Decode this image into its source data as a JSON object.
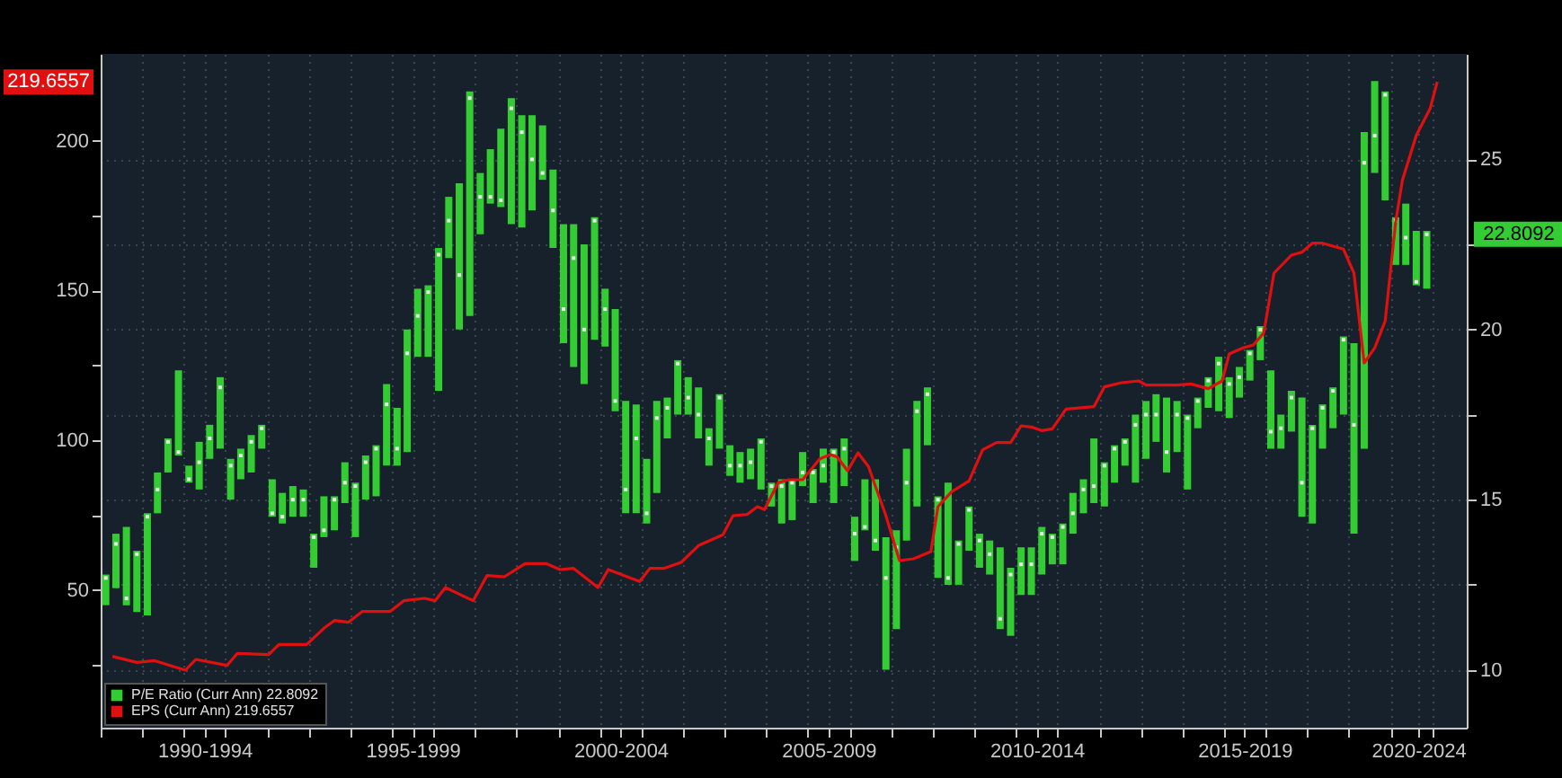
{
  "chart_data": {
    "type": "bar",
    "legend": "bottom left",
    "grid": true,
    "x": [
      "1990-02-15",
      "1990-05-15",
      "1990-08-15",
      "1990-11-15",
      "1991-02-15",
      "1991-05-15",
      "1991-08-15",
      "1991-11-15",
      "1992-02-15",
      "1992-05-15",
      "1992-08-15",
      "1992-11-15",
      "1993-02-15",
      "1993-05-15",
      "1993-08-15",
      "1993-11-15",
      "1994-02-15",
      "1994-05-15",
      "1994-08-15",
      "1994-11-15",
      "1995-02-15",
      "1995-05-15",
      "1995-08-15",
      "1995-11-15",
      "1996-02-15",
      "1996-05-15",
      "1996-08-15",
      "1996-11-15",
      "1997-02-15",
      "1997-05-15",
      "1997-08-15",
      "1997-11-15",
      "1998-02-15",
      "1998-05-15",
      "1998-08-15",
      "1998-11-15",
      "1999-02-15",
      "1999-05-15",
      "1999-08-15",
      "1999-11-15",
      "2000-02-15",
      "2000-05-15",
      "2000-08-15",
      "2000-11-15",
      "2001-02-15",
      "2001-05-15",
      "2001-08-15",
      "2001-11-15",
      "2002-02-15",
      "2002-05-15",
      "2002-08-15",
      "2002-11-15",
      "2003-02-15",
      "2003-05-15",
      "2003-08-15",
      "2003-11-15",
      "2004-02-15",
      "2004-05-15",
      "2004-08-15",
      "2004-11-15",
      "2005-02-15",
      "2005-05-15",
      "2005-08-15",
      "2005-11-15",
      "2006-02-15",
      "2006-05-15",
      "2006-08-15",
      "2006-11-15",
      "2007-02-15",
      "2007-05-15",
      "2007-08-15",
      "2007-11-15",
      "2008-02-15",
      "2008-05-15",
      "2008-08-15",
      "2008-11-15",
      "2009-02-15",
      "2009-05-15",
      "2009-08-15",
      "2009-11-15",
      "2010-02-15",
      "2010-05-15",
      "2010-08-15",
      "2010-11-15",
      "2011-02-15",
      "2011-05-15",
      "2011-08-15",
      "2011-11-15",
      "2012-02-15",
      "2012-05-15",
      "2012-08-15",
      "2012-11-15",
      "2013-02-15",
      "2013-05-15",
      "2013-08-15",
      "2013-11-15",
      "2014-02-15",
      "2014-05-15",
      "2014-08-15",
      "2014-11-15",
      "2015-02-15",
      "2015-05-15",
      "2015-08-15",
      "2015-11-15",
      "2016-02-15",
      "2016-05-15",
      "2016-08-15",
      "2016-11-15",
      "2017-02-15",
      "2017-05-15",
      "2017-08-15",
      "2017-11-15",
      "2018-02-15",
      "2018-05-15",
      "2018-08-15",
      "2018-11-15",
      "2019-02-15",
      "2019-05-15",
      "2019-08-15",
      "2019-11-15",
      "2020-02-15",
      "2020-05-15",
      "2020-08-15",
      "2020-11-15",
      "2021-02-15",
      "2021-05-15",
      "2021-08-15",
      "2021-11-15"
    ],
    "xlim": [
      "1990-01-01",
      "2022-11-01"
    ],
    "xticks": [
      {
        "value": "1990-01-01",
        "label": null
      },
      {
        "value": "1991-01-01",
        "label": null
      },
      {
        "value": "1992-01-01",
        "label": null
      },
      {
        "value": "1992-07-01",
        "label": "1990-1994"
      },
      {
        "value": "1993-01-01",
        "label": null
      },
      {
        "value": "1994-01-01",
        "label": null
      },
      {
        "value": "1995-01-01",
        "label": null
      },
      {
        "value": "1996-01-01",
        "label": null
      },
      {
        "value": "1997-01-01",
        "label": null
      },
      {
        "value": "1997-07-01",
        "label": "1995-1999"
      },
      {
        "value": "1998-01-01",
        "label": null
      },
      {
        "value": "1999-01-01",
        "label": null
      },
      {
        "value": "2000-01-01",
        "label": null
      },
      {
        "value": "2001-01-01",
        "label": null
      },
      {
        "value": "2002-01-01",
        "label": null
      },
      {
        "value": "2002-07-01",
        "label": "2000-2004"
      },
      {
        "value": "2003-01-01",
        "label": null
      },
      {
        "value": "2004-01-01",
        "label": null
      },
      {
        "value": "2005-01-01",
        "label": null
      },
      {
        "value": "2006-01-01",
        "label": null
      },
      {
        "value": "2007-01-01",
        "label": null
      },
      {
        "value": "2007-07-01",
        "label": "2005-2009"
      },
      {
        "value": "2008-01-01",
        "label": null
      },
      {
        "value": "2009-01-01",
        "label": null
      },
      {
        "value": "2010-01-01",
        "label": null
      },
      {
        "value": "2011-01-01",
        "label": null
      },
      {
        "value": "2012-01-01",
        "label": null
      },
      {
        "value": "2012-07-01",
        "label": "2010-2014"
      },
      {
        "value": "2013-01-01",
        "label": null
      },
      {
        "value": "2014-01-01",
        "label": null
      },
      {
        "value": "2015-01-01",
        "label": null
      },
      {
        "value": "2016-01-01",
        "label": null
      },
      {
        "value": "2017-01-01",
        "label": null
      },
      {
        "value": "2017-07-01",
        "label": "2015-2019"
      },
      {
        "value": "2018-01-01",
        "label": null
      },
      {
        "value": "2019-01-01",
        "label": null
      },
      {
        "value": "2020-01-01",
        "label": null
      },
      {
        "value": "2021-01-01",
        "label": null
      },
      {
        "value": "2021-09-01",
        "label": "2020-2024"
      },
      {
        "value": "2022-01-01",
        "label": null
      }
    ],
    "ylim": [
      4,
      229
    ],
    "yticks": [
      {
        "value": 25,
        "label": null
      },
      50,
      {
        "value": 75,
        "label": null
      },
      100,
      {
        "value": 125,
        "label": null
      },
      150,
      {
        "value": 175,
        "label": null
      },
      200
    ],
    "y2lim": [
      8.3,
      28.1
    ],
    "y2ticks": [
      10,
      {
        "value": 12.5,
        "label": null
      },
      15,
      {
        "value": 17.5,
        "label": null
      },
      20,
      {
        "value": 22.5,
        "label": null
      },
      25
    ],
    "series": [
      {
        "name": "P/E Ratio (Curr Ann) 22.8092",
        "axis": "y2",
        "color": "#33cc33",
        "base": [
          11.9,
          12.4,
          11.9,
          11.7,
          11.6,
          14.6,
          15.8,
          16.3,
          15.5,
          15.3,
          16.2,
          16.5,
          15.0,
          15.6,
          15.8,
          16.5,
          14.5,
          14.3,
          14.5,
          14.5,
          13.0,
          13.9,
          14.1,
          14.9,
          13.9,
          15.0,
          15.1,
          16.0,
          16.0,
          16.4,
          19.2,
          19.2,
          18.2,
          22.1,
          20.0,
          20.4,
          22.8,
          23.7,
          23.6,
          23.1,
          23.0,
          23.5,
          24.4,
          22.4,
          19.6,
          18.9,
          18.4,
          19.7,
          19.5,
          17.6,
          14.6,
          14.6,
          14.3,
          15.2,
          16.8,
          17.5,
          17.5,
          16.8,
          16.0,
          16.5,
          15.7,
          15.5,
          15.6,
          15.3,
          14.8,
          14.3,
          14.4,
          15.4,
          14.9,
          15.5,
          14.9,
          15.4,
          13.2,
          14.1,
          13.5,
          10.0,
          11.2,
          13.8,
          14.8,
          16.6,
          12.7,
          12.5,
          12.5,
          13.5,
          13.0,
          12.8,
          11.2,
          11.0,
          12.2,
          12.2,
          12.8,
          13.1,
          13.1,
          14.0,
          14.6,
          14.9,
          14.8,
          15.5,
          16.0,
          15.5,
          16.2,
          16.7,
          15.8,
          16.4,
          15.3,
          17.1,
          17.7,
          17.6,
          17.4,
          18.0,
          18.5,
          19.1,
          16.5,
          16.5,
          17.0,
          14.5,
          14.3,
          16.5,
          17.1,
          17.5,
          14.0,
          16.5,
          24.6,
          23.8,
          21.9,
          21.9,
          21.3,
          21.2
        ],
        "values": [
          0.9,
          1.6,
          2.3,
          1.8,
          3.0,
          1.2,
          1.0,
          2.5,
          0.5,
          1.4,
          1.0,
          2.1,
          1.2,
          0.9,
          1.1,
          0.7,
          1.1,
          0.9,
          0.9,
          0.8,
          1.0,
          1.2,
          1.0,
          1.2,
          1.6,
          1.3,
          1.5,
          2.4,
          1.7,
          3.6,
          2.0,
          2.1,
          4.2,
          1.8,
          4.3,
          6.6,
          1.8,
          1.6,
          2.3,
          3.7,
          3.3,
          2.8,
          1.6,
          2.3,
          3.5,
          4.2,
          4.1,
          3.6,
          1.7,
          3.0,
          3.3,
          3.2,
          1.9,
          2.7,
          1.2,
          1.6,
          1.1,
          1.5,
          1.1,
          1.6,
          0.9,
          0.9,
          0.9,
          1.5,
          0.7,
          1.3,
          1.2,
          1.0,
          1.0,
          1.0,
          1.6,
          1.4,
          1.3,
          1.5,
          2.1,
          3.9,
          2.9,
          2.7,
          3.1,
          1.7,
          2.4,
          3.0,
          1.3,
          1.3,
          1.0,
          1.0,
          2.4,
          2.0,
          1.4,
          1.4,
          1.4,
          0.9,
          1.2,
          1.2,
          1.0,
          1.9,
          1.3,
          1.1,
          0.8,
          2.0,
          1.7,
          1.4,
          2.2,
          1.5,
          2.2,
          0.9,
          0.9,
          1.6,
          1.2,
          0.9,
          0.9,
          1.0,
          2.3,
          1.0,
          1.2,
          3.5,
          2.9,
          1.3,
          1.2,
          2.3,
          5.6,
          9.3,
          2.7,
          3.2,
          1.4,
          1.8,
          1.6,
          1.7
        ]
      },
      {
        "type": "scatter",
        "axis": "y2",
        "color": "#e8e8e8",
        "marker": "square",
        "values": [
          12.7,
          13.7,
          12.1,
          13.4,
          14.5,
          15.3,
          16.7,
          16.4,
          15.6,
          16.1,
          16.8,
          18.3,
          16.0,
          16.3,
          16.7,
          17.1,
          14.6,
          14.5,
          15.0,
          15.0,
          13.9,
          14.1,
          15.0,
          15.5,
          15.4,
          16.1,
          16.5,
          17.8,
          16.5,
          19.3,
          20.4,
          21.1,
          22.2,
          23.2,
          21.6,
          26.8,
          23.9,
          23.9,
          23.8,
          26.5,
          25.8,
          25.0,
          24.6,
          23.5,
          20.6,
          22.1,
          20.0,
          23.2,
          20.6,
          17.9,
          15.3,
          16.8,
          14.6,
          17.4,
          17.7,
          19.0,
          18.0,
          17.5,
          16.8,
          18.0,
          16.0,
          16.0,
          16.1,
          16.7,
          15.4,
          15.4,
          15.5,
          15.8,
          15.8,
          16.0,
          16.4,
          16.5,
          14.0,
          14.2,
          13.8,
          12.7,
          13.6,
          15.5,
          17.6,
          18.1,
          15.0,
          12.7,
          13.7,
          14.7,
          13.8,
          13.4,
          11.5,
          12.8,
          13.1,
          13.1,
          14.0,
          13.9,
          14.2,
          14.6,
          15.3,
          15.4,
          16.0,
          16.5,
          16.7,
          17.2,
          17.5,
          17.5,
          16.4,
          17.5,
          17.4,
          17.9,
          18.5,
          19.0,
          18.4,
          18.6,
          19.3,
          20.0,
          17.0,
          17.1,
          18.0,
          15.5,
          17.1,
          17.7,
          18.2,
          19.7,
          17.2,
          24.9,
          25.7,
          26.9,
          23.2,
          22.7,
          21.4,
          22.8
        ]
      },
      {
        "name": "EPS (Curr Ann) 219.6557",
        "type": "line",
        "axis": "y",
        "color": "#e01010",
        "x": [
          "1990-04-15",
          "1990-11-15",
          "1991-04-15",
          "1992-01-15",
          "1992-04-15",
          "1993-01-15",
          "1993-04-15",
          "1994-01-15",
          "1994-04-15",
          "1994-12-15",
          "1995-05-15",
          "1995-08-15",
          "1995-12-15",
          "1996-04-15",
          "1996-12-15",
          "1997-04-15",
          "1997-10-15",
          "1998-01-15",
          "1998-04-15",
          "1998-12-15",
          "1999-04-15",
          "1999-09-15",
          "2000-03-15",
          "2000-09-15",
          "2001-01-15",
          "2001-05-15",
          "2001-12-15",
          "2002-03-15",
          "2002-12-15",
          "2003-03-15",
          "2003-07-15",
          "2003-12-15",
          "2004-05-15",
          "2004-12-15",
          "2005-03-15",
          "2005-07-15",
          "2005-10-15",
          "2005-12-15",
          "2006-04-15",
          "2006-07-15",
          "2006-11-15",
          "2007-04-15",
          "2007-07-15",
          "2007-09-15",
          "2007-12-15",
          "2008-03-15",
          "2008-06-15",
          "2008-11-15",
          "2009-03-15",
          "2009-07-15",
          "2009-12-15",
          "2010-02-15",
          "2010-06-15",
          "2010-11-15",
          "2011-03-15",
          "2011-07-15",
          "2011-11-15",
          "2012-02-15",
          "2012-05-15",
          "2012-08-15",
          "2012-11-15",
          "2013-03-15",
          "2013-11-15",
          "2014-02-15",
          "2014-07-15",
          "2014-12-15",
          "2015-02-15",
          "2015-11-15",
          "2016-03-15",
          "2016-08-15",
          "2016-12-15",
          "2017-02-15",
          "2017-06-15",
          "2017-09-15",
          "2017-12-15",
          "2018-03-15",
          "2018-08-15",
          "2018-11-15",
          "2019-02-15",
          "2019-05-15",
          "2019-11-15",
          "2020-02-15",
          "2020-05-15",
          "2020-08-15",
          "2020-11-15",
          "2021-02-15",
          "2021-04-15",
          "2021-08-15",
          "2021-12-15",
          "2022-02-15"
        ],
        "values": [
          27.8,
          25.8,
          26.4,
          23.2,
          26.8,
          24.8,
          28.8,
          28.4,
          31.8,
          31.8,
          37.2,
          39.8,
          39.2,
          42.8,
          42.8,
          46.4,
          47.2,
          46.4,
          50.8,
          46.4,
          54.8,
          54.4,
          58.8,
          58.8,
          56.8,
          57.2,
          50.8,
          56.8,
          52.8,
          57.2,
          57.2,
          59.2,
          64.8,
          68.4,
          74.8,
          75.2,
          77.8,
          76.8,
          85.8,
          86.8,
          86.8,
          93.8,
          95.2,
          94.4,
          89.8,
          95.8,
          91.2,
          74.8,
          59.8,
          60.4,
          62.8,
          77.8,
          82.8,
          86.4,
          96.8,
          99.2,
          99.2,
          104.8,
          104.4,
          103.2,
          103.8,
          110.4,
          111.2,
          117.8,
          119.2,
          119.8,
          118.4,
          118.4,
          118.8,
          117.2,
          119.8,
          128.8,
          130.8,
          131.8,
          135.8,
          155.8,
          161.8,
          162.8,
          165.8,
          165.8,
          163.8,
          155.8,
          125.8,
          130.8,
          139.8,
          172.8,
          186.8,
          201.8,
          210.8,
          219.6557
        ]
      }
    ],
    "annotations": [
      "22.8092",
      "219.6557"
    ]
  }
}
